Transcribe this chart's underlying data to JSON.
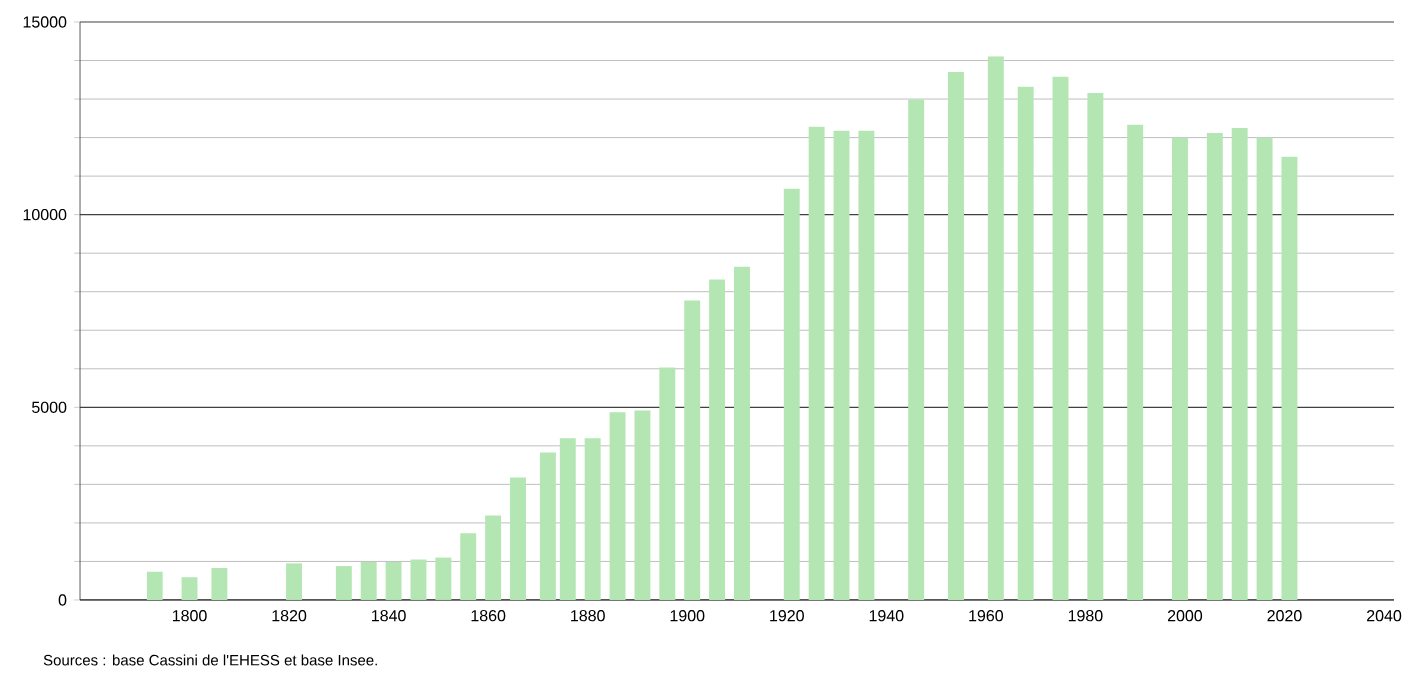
{
  "chart_data": {
    "type": "bar",
    "x": [
      1793,
      1800,
      1806,
      1821,
      1831,
      1836,
      1841,
      1846,
      1851,
      1856,
      1861,
      1866,
      1872,
      1876,
      1881,
      1886,
      1891,
      1896,
      1901,
      1906,
      1911,
      1921,
      1926,
      1931,
      1936,
      1946,
      1954,
      1962,
      1968,
      1975,
      1982,
      1990,
      1999,
      2006,
      2011,
      2016,
      2021
    ],
    "values": [
      730,
      590,
      830,
      950,
      880,
      985,
      985,
      1050,
      1100,
      1730,
      2190,
      3180,
      3830,
      4200,
      4200,
      4870,
      4920,
      6030,
      7770,
      8320,
      8650,
      10670,
      12280,
      12180,
      12180,
      12990,
      13700,
      14110,
      13320,
      13580,
      13160,
      12330,
      12000,
      12120,
      12250,
      12000,
      11500
    ],
    "color": "#b3e6b3",
    "xlim": [
      1778,
      2042
    ],
    "xticks": [
      1800,
      1820,
      1840,
      1860,
      1880,
      1900,
      1920,
      1940,
      1960,
      1980,
      2000,
      2020,
      2040
    ],
    "ylim": [
      0,
      15000
    ],
    "yticks": [
      0,
      5000,
      10000,
      15000
    ],
    "grid": "y",
    "annotations": [
      "Sources : base Cassini de l'EHESS et base Insee."
    ]
  }
}
